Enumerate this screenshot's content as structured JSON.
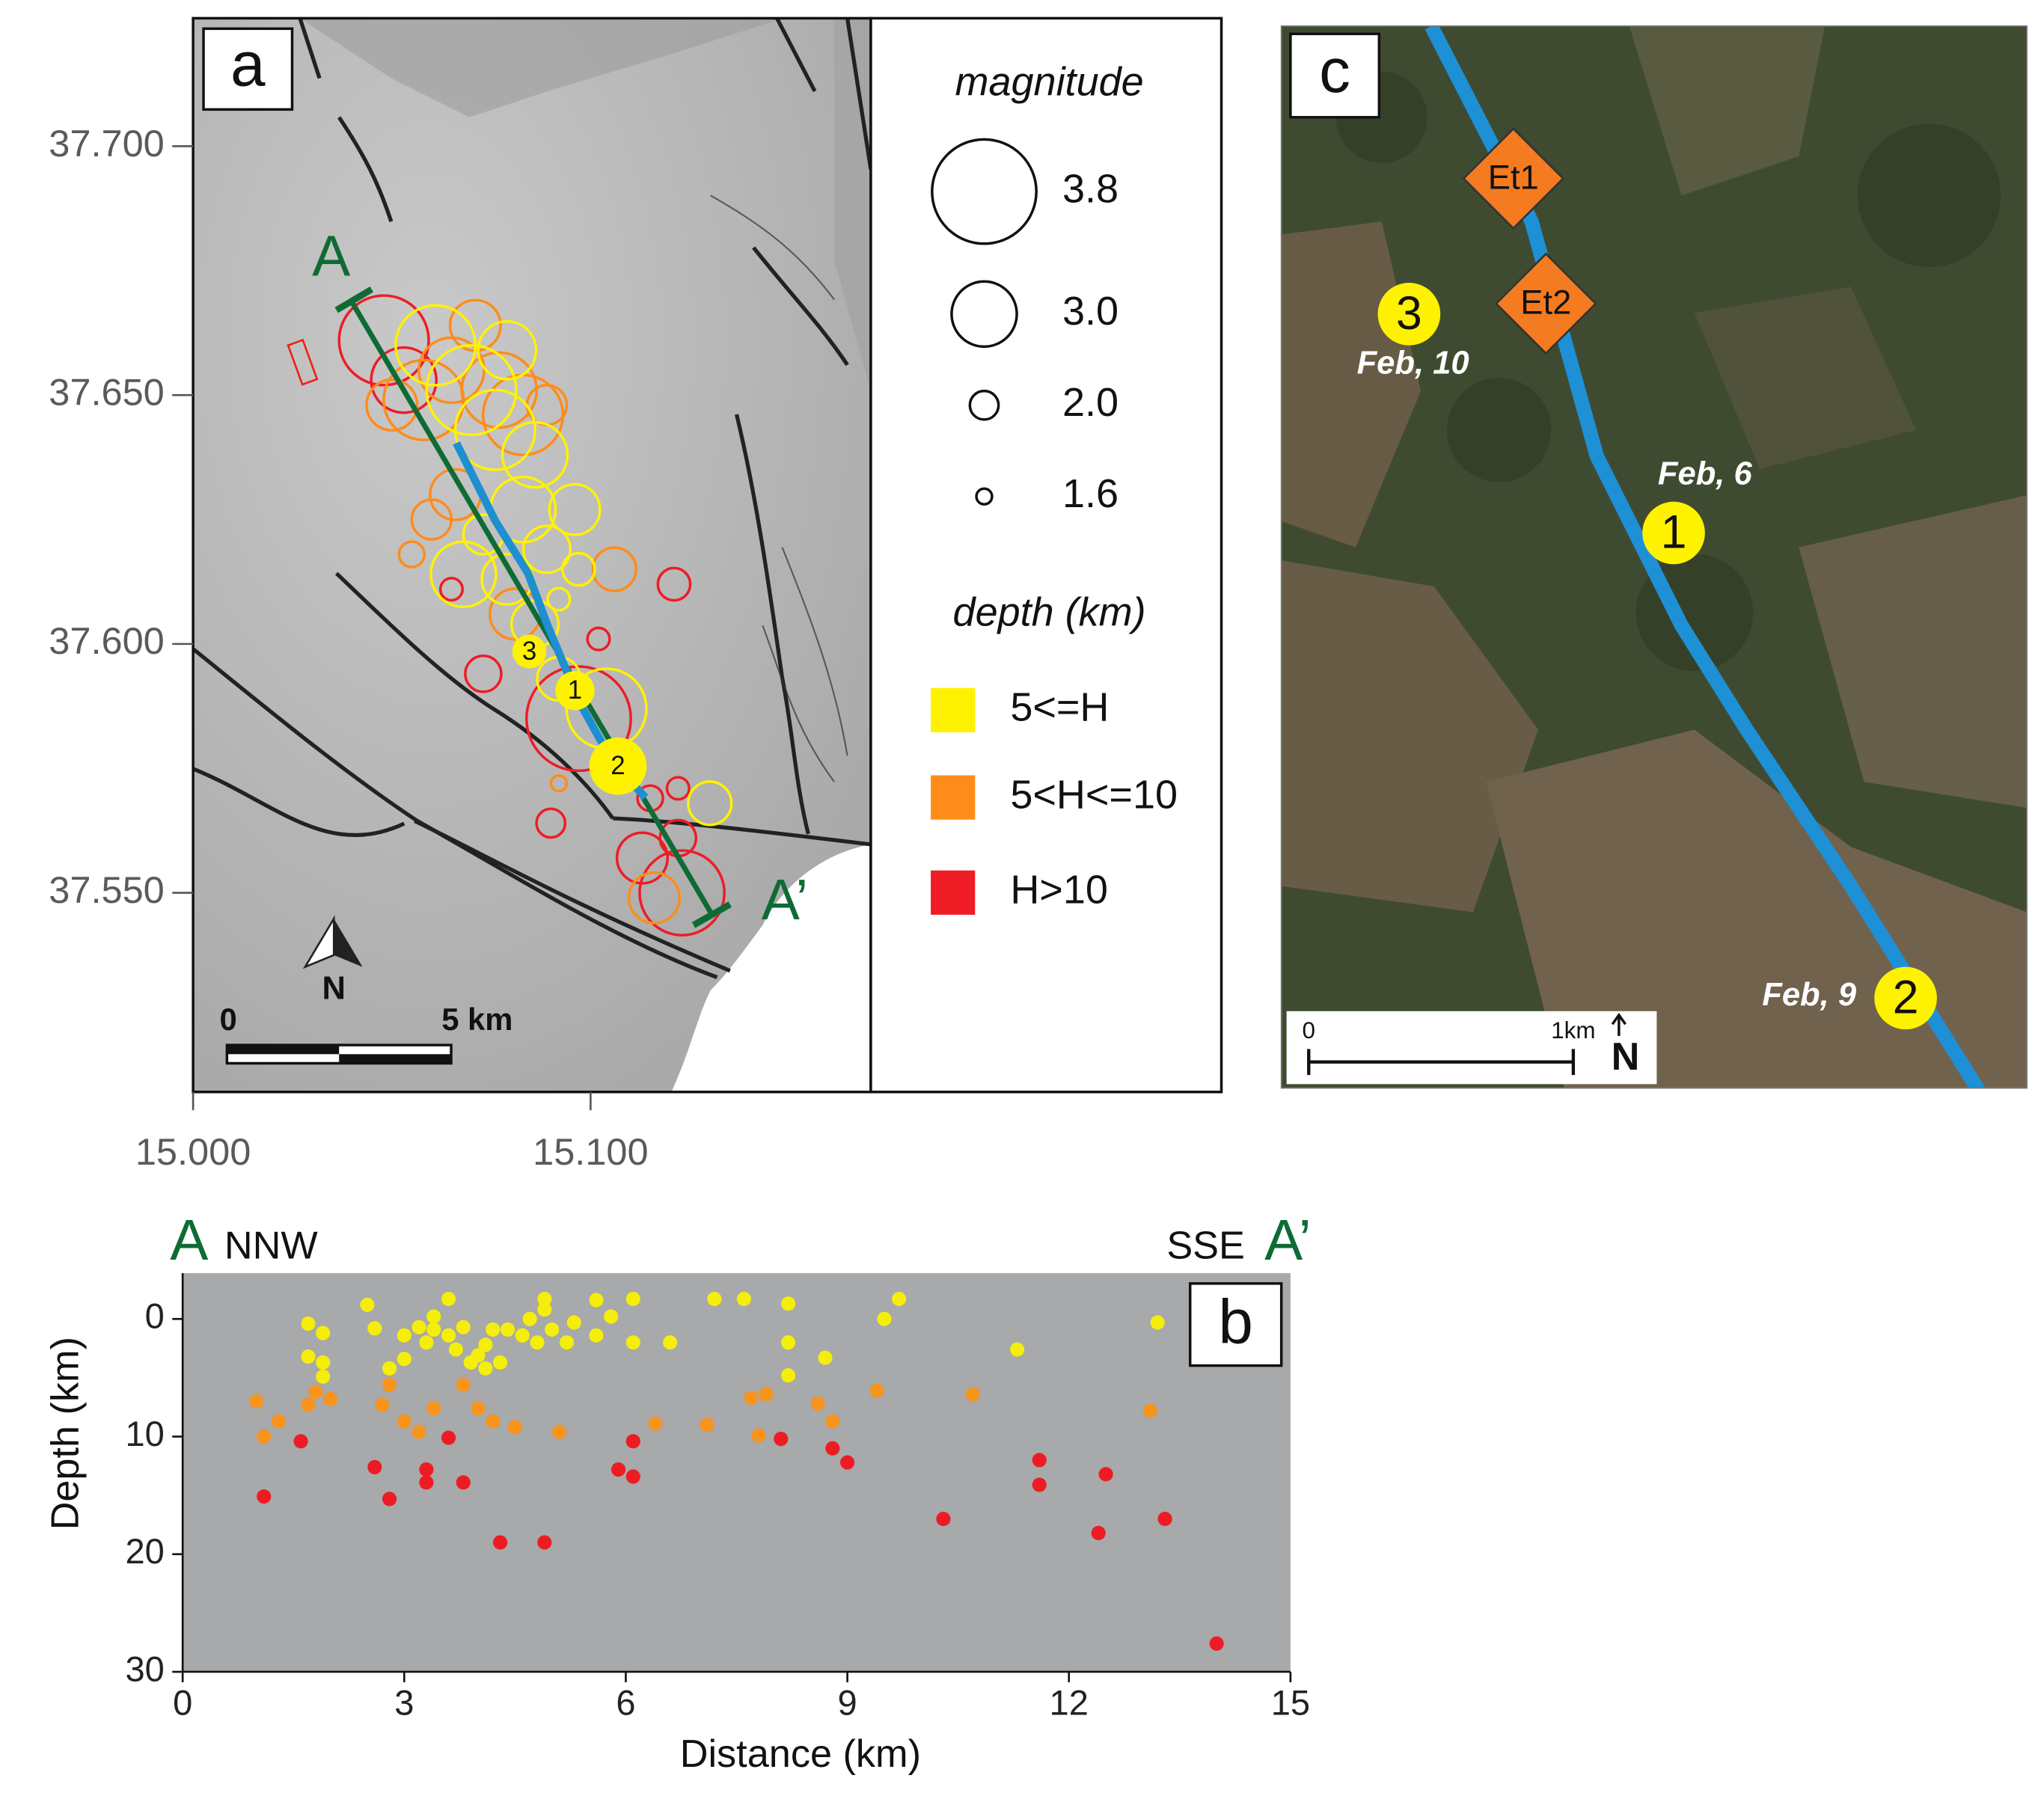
{
  "chart_data": [
    {
      "type": "bubble_map",
      "panel": "a",
      "xlim": [
        15.0,
        15.1705
      ],
      "ylim": [
        37.51,
        37.7257
      ],
      "xticks": [
        {
          "value": 15.0,
          "label": "15.000"
        },
        {
          "value": 15.1,
          "label": "15.100"
        }
      ],
      "yticks": [
        {
          "value": 37.55,
          "label": "37.550"
        },
        {
          "value": 37.6,
          "label": "37.600"
        },
        {
          "value": 37.65,
          "label": "37.650"
        },
        {
          "value": 37.7,
          "label": "37.700"
        }
      ],
      "size_legend": {
        "title": "magnitude",
        "values": [
          3.8,
          {
            "value": 3,
            "label": "3.0"
          },
          {
            "value": 2,
            "label": "2.0"
          },
          1.6
        ]
      },
      "legend_title": "depth (km)",
      "series": [
        {
          "name": "H>10",
          "color": "#ee1c25",
          "x": [
            15.048,
            15.121,
            15.102,
            15.073,
            15.097,
            15.123,
            15.09,
            15.122,
            15.113,
            15.115,
            15.122,
            15.065,
            15.053
          ],
          "values": [
            37.661,
            37.612,
            37.601,
            37.594,
            37.585,
            37.55,
            37.564,
            37.561,
            37.557,
            37.569,
            37.571,
            37.611,
            37.653
          ],
          "sizes": [
            3.5,
            2.1,
            1.8,
            2.2,
            3.8,
            3.4,
            2.0,
            2.2,
            2.6,
            1.9,
            1.8,
            1.8,
            3.0
          ]
        },
        {
          "name": "5<H<=10",
          "color": "#ff8c1a",
          "x": [
            15.058,
            15.065,
            15.05,
            15.083,
            15.066,
            15.06,
            15.055,
            15.106,
            15.081,
            15.092,
            15.116,
            15.077,
            15.089,
            15.071
          ],
          "values": [
            37.649,
            37.655,
            37.648,
            37.646,
            37.63,
            37.625,
            37.618,
            37.615,
            37.606,
            37.572,
            37.549,
            37.651,
            37.648,
            37.664
          ],
          "sizes": [
            3.3,
            3.0,
            2.6,
            3.3,
            2.6,
            2.3,
            1.9,
            2.4,
            2.6,
            1.6,
            2.6,
            3.2,
            2.3,
            2.6
          ]
        },
        {
          "name": "5<=H",
          "color": "#fff200",
          "x": [
            15.061,
            15.07,
            15.076,
            15.086,
            15.083,
            15.073,
            15.068,
            15.079,
            15.089,
            15.097,
            15.086,
            15.092,
            15.104,
            15.13,
            15.096,
            15.079,
            15.092
          ],
          "values": [
            37.66,
            37.651,
            37.643,
            37.638,
            37.627,
            37.622,
            37.614,
            37.613,
            37.619,
            37.615,
            37.604,
            37.593,
            37.587,
            37.568,
            37.627,
            37.659,
            37.609
          ],
          "sizes": [
            3.3,
            3.5,
            3.3,
            3.0,
            3.0,
            2.3,
            3.0,
            2.6,
            2.5,
            2.1,
            2.5,
            2.4,
            3.3,
            2.4,
            2.6,
            2.8,
            1.8
          ]
        }
      ],
      "profile_labels": [
        "A",
        "A’"
      ],
      "event_labels": [
        "1",
        "2",
        "3"
      ],
      "scale_labels": [
        "0",
        "5 km"
      ],
      "north": "N"
    },
    {
      "type": "scatter",
      "panel": "b",
      "xlabel": "Distance (km)",
      "ylabel": "Depth (km)",
      "xlim": [
        0,
        15
      ],
      "ylim": [
        -3.9,
        30
      ],
      "y_reversed": true,
      "xticks": [
        0,
        3,
        6,
        9,
        12,
        15
      ],
      "yticks": [
        0,
        10,
        20,
        30
      ],
      "edge_labels": [
        "A",
        "NNW",
        "SSE",
        "A’"
      ],
      "series": [
        {
          "color": "#f5ee0a",
          "x": [
            2.5,
            2.6,
            1.7,
            1.9,
            1.7,
            1.9,
            1.9,
            2.8,
            3.0,
            3.0,
            3.2,
            3.3,
            3.4,
            3.4,
            3.6,
            3.6,
            3.7,
            3.8,
            3.9,
            4.0,
            4.1,
            4.1,
            4.2,
            4.3,
            4.4,
            4.6,
            4.7,
            4.8,
            4.9,
            4.9,
            5.0,
            5.2,
            5.3,
            5.6,
            5.6,
            5.8,
            6.1,
            6.1,
            6.6,
            7.2,
            7.6,
            8.2,
            8.2,
            8.2,
            8.7,
            9.5,
            9.7,
            11.3,
            13.2
          ],
          "values": [
            -1.2,
            0.8,
            0.4,
            1.2,
            3.2,
            3.7,
            4.9,
            4.2,
            1.4,
            3.4,
            0.7,
            2.0,
            -0.2,
            0.9,
            -1.7,
            1.4,
            2.6,
            0.7,
            3.7,
            3.1,
            4.2,
            2.2,
            0.9,
            3.7,
            0.9,
            1.4,
            0,
            2.0,
            -0.8,
            -1.7,
            0.9,
            2.0,
            0.3,
            -1.6,
            1.4,
            -0.2,
            -1.7,
            2.0,
            2.0,
            -1.7,
            -1.7,
            -1.3,
            2.0,
            4.8,
            3.3,
            0,
            -1.7,
            2.6,
            0.3
          ]
        },
        {
          "color": "#f7941d",
          "x": [
            1.0,
            1.1,
            1.3,
            1.7,
            1.8,
            2.0,
            2.7,
            2.8,
            3.0,
            3.2,
            3.4,
            3.8,
            4.0,
            4.2,
            4.5,
            5.1,
            6.4,
            7.1,
            7.7,
            7.8,
            7.9,
            8.6,
            8.8,
            9.4,
            10.7,
            13.1
          ],
          "values": [
            7.0,
            10.0,
            8.7,
            7.3,
            6.2,
            6.8,
            7.3,
            5.6,
            8.7,
            9.6,
            7.6,
            5.6,
            7.6,
            8.7,
            9.2,
            9.6,
            8.9,
            9.0,
            6.7,
            9.9,
            6.4,
            7.2,
            8.7,
            6.1,
            6.4,
            7.8
          ]
        },
        {
          "color": "#ed1c24",
          "x": [
            1.6,
            1.1,
            2.6,
            2.8,
            3.3,
            3.3,
            3.6,
            3.8,
            4.3,
            4.9,
            5.9,
            6.1,
            6.1,
            8.1,
            8.8,
            9.0,
            10.3,
            11.6,
            11.6,
            12.4,
            12.5,
            13.3,
            14.0
          ],
          "values": [
            10.4,
            15.1,
            12.6,
            15.3,
            12.8,
            13.9,
            10.1,
            13.9,
            19.0,
            19.0,
            12.8,
            10.4,
            13.4,
            10.2,
            11.0,
            12.2,
            17.0,
            14.1,
            12.0,
            18.2,
            13.2,
            17.0,
            27.6
          ]
        }
      ]
    },
    {
      "type": "image_map",
      "panel": "c",
      "sites": [
        "Et1",
        "Et2"
      ],
      "events": [
        {
          "label": "1",
          "date": "Feb, 6"
        },
        {
          "label": "2",
          "date": "Feb, 9"
        },
        {
          "label": "3",
          "date": "Feb, 10"
        }
      ],
      "scale_labels": [
        "0",
        "1km"
      ],
      "north": "N"
    }
  ]
}
